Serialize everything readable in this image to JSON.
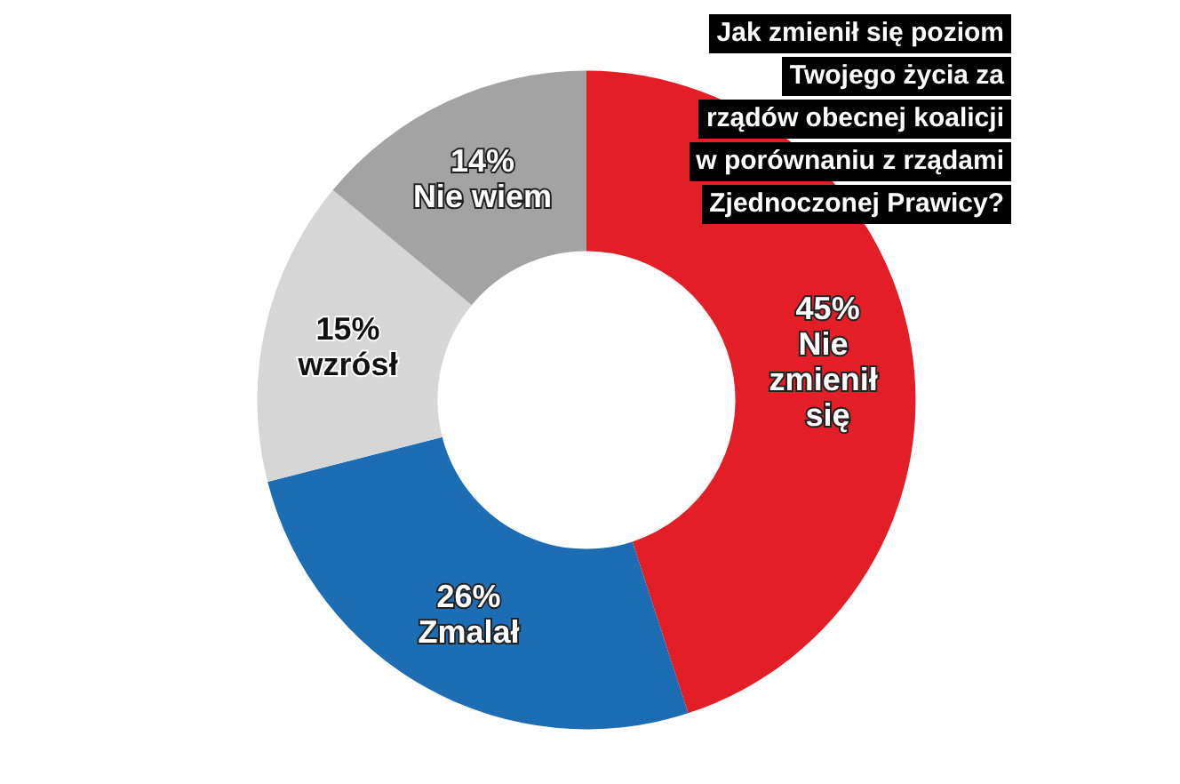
{
  "chart_data": {
    "type": "donut",
    "title": "Jak zmienił się poziom\nTwojego życia za\nrządów obecnej koalicji\nw porównaniu z rządami\nZjednoczonej Prawicy?",
    "categories": [
      "Nie zmienił się",
      "Zmalał",
      "wzrósł",
      "Nie wiem"
    ],
    "values": [
      45,
      26,
      15,
      14
    ],
    "value_labels": [
      "45%",
      "26%",
      "15%",
      "14%"
    ],
    "colors": [
      "#e31e26",
      "#1d6db5",
      "#d6d6d6",
      "#a3a3a3"
    ]
  }
}
